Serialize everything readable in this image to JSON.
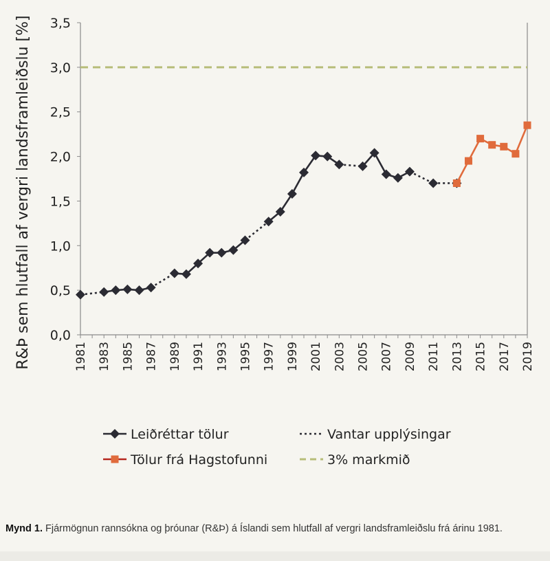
{
  "chart_data": {
    "type": "line",
    "ylabel": "R&Þ sem hlutfall af vergri landsframleiðslu [%]",
    "xlabel": "",
    "ylim": [
      0,
      3.5
    ],
    "xlim": [
      1981,
      2019
    ],
    "y_ticks": [
      "0,0",
      "0,5",
      "1,0",
      "1,5",
      "2,0",
      "2,5",
      "3,0",
      "3,5"
    ],
    "y_tick_values": [
      0,
      0.5,
      1.0,
      1.5,
      2.0,
      2.5,
      3.0,
      3.5
    ],
    "x_ticks": [
      "1981",
      "1983",
      "1985",
      "1987",
      "1989",
      "1991",
      "1993",
      "1995",
      "1997",
      "1999",
      "2001",
      "2003",
      "2005",
      "2007",
      "2009",
      "2011",
      "2013",
      "2015",
      "2017",
      "2019"
    ],
    "series": [
      {
        "name": "Leiðréttar tölur",
        "color": "#2b2b33",
        "marker": "diamond",
        "points": [
          [
            1981,
            0.45
          ],
          [
            1983,
            0.48
          ],
          [
            1984,
            0.5
          ],
          [
            1985,
            0.51
          ],
          [
            1986,
            0.5
          ],
          [
            1987,
            0.53
          ],
          [
            1989,
            0.69
          ],
          [
            1990,
            0.68
          ],
          [
            1991,
            0.8
          ],
          [
            1992,
            0.92
          ],
          [
            1993,
            0.92
          ],
          [
            1994,
            0.95
          ],
          [
            1995,
            1.06
          ],
          [
            1997,
            1.27
          ],
          [
            1998,
            1.38
          ],
          [
            1999,
            1.58
          ],
          [
            2000,
            1.82
          ],
          [
            2001,
            2.01
          ],
          [
            2002,
            2.0
          ],
          [
            2003,
            1.91
          ],
          [
            2005,
            1.89
          ],
          [
            2006,
            2.04
          ],
          [
            2007,
            1.8
          ],
          [
            2008,
            1.76
          ],
          [
            2009,
            1.83
          ],
          [
            2011,
            1.7
          ],
          [
            2013,
            1.7
          ]
        ]
      },
      {
        "name": "Vantar upplýsingar",
        "color": "#2b2b33",
        "style": "dotted",
        "segments": [
          [
            [
              1981,
              0.45
            ],
            [
              1983,
              0.48
            ]
          ],
          [
            [
              1987,
              0.53
            ],
            [
              1989,
              0.69
            ]
          ],
          [
            [
              1995,
              1.06
            ],
            [
              1997,
              1.27
            ]
          ],
          [
            [
              2003,
              1.91
            ],
            [
              2005,
              1.89
            ]
          ],
          [
            [
              2009,
              1.83
            ],
            [
              2011,
              1.7
            ]
          ],
          [
            [
              2011,
              1.7
            ],
            [
              2013,
              1.7
            ]
          ]
        ]
      },
      {
        "name": "Tölur frá Hagstofunni",
        "color": "#e06b3c",
        "marker": "square",
        "points": [
          [
            2013,
            1.7
          ],
          [
            2014,
            1.95
          ],
          [
            2015,
            2.2
          ],
          [
            2016,
            2.13
          ],
          [
            2017,
            2.11
          ],
          [
            2018,
            2.03
          ],
          [
            2019,
            2.35
          ]
        ]
      },
      {
        "name": "3% markmið",
        "color": "#b7bd79",
        "style": "dashed",
        "value": 3.0
      }
    ],
    "legend": [
      {
        "label": "Leiðréttar tölur",
        "kind": "line-diamond",
        "color": "#2b2b33"
      },
      {
        "label": "Vantar upplýsingar",
        "kind": "dotted",
        "color": "#2b2b33"
      },
      {
        "label": "Tölur frá Hagstofunni",
        "kind": "line-square",
        "color": "#e06b3c",
        "line_color": "#b5261e"
      },
      {
        "label": "3% markmið",
        "kind": "dashed",
        "color": "#b7bd79"
      }
    ],
    "legend_placement": "bottom"
  },
  "caption": {
    "label": "Mynd 1.",
    "text": "Fjármögnun rannsókna og þróunar (R&Þ) á Íslandi sem hlutfall af vergri landsframleiðslu frá árinu 1981."
  }
}
